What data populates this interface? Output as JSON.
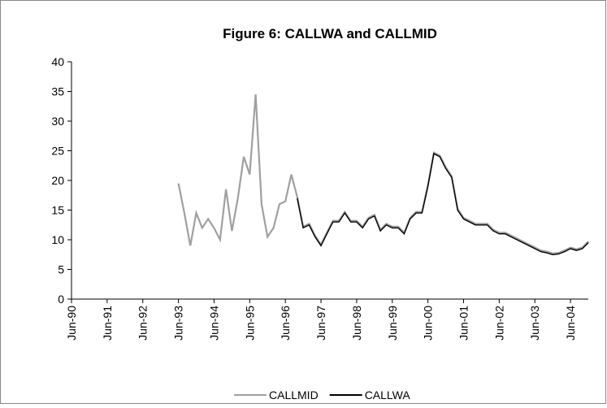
{
  "chart_data": {
    "type": "line",
    "title": "Figure 6: CALLWA and CALLMID",
    "categories": [
      "Jun-90",
      null,
      null,
      null,
      null,
      null,
      "Jun-91",
      null,
      null,
      null,
      null,
      null,
      "Jun-92",
      null,
      null,
      null,
      null,
      null,
      "Jun-93",
      null,
      null,
      null,
      null,
      null,
      "Jun-94",
      null,
      null,
      null,
      null,
      null,
      "Jun-95",
      null,
      null,
      null,
      null,
      null,
      "Jun-96",
      null,
      null,
      null,
      null,
      null,
      "Jun-97",
      null,
      null,
      null,
      null,
      null,
      "Jun-98",
      null,
      null,
      null,
      null,
      null,
      "Jun-99",
      null,
      null,
      null,
      null,
      null,
      "Jun-00",
      null,
      null,
      null,
      null,
      null,
      "Jun-01",
      null,
      null,
      null,
      null,
      null,
      "Jun-02",
      null,
      null,
      null,
      null,
      null,
      "Jun-03",
      null,
      null,
      null,
      null,
      null,
      "Jun-04",
      null,
      null,
      null
    ],
    "series": [
      {
        "name": "CALLMID",
        "color": "#a0a0a0",
        "values": [
          null,
          null,
          null,
          null,
          null,
          null,
          null,
          null,
          null,
          null,
          null,
          null,
          null,
          null,
          null,
          null,
          null,
          null,
          19.5,
          14.5,
          9,
          14.5,
          12,
          13.5,
          12,
          10,
          18.5,
          11.5,
          17,
          24,
          21,
          34.5,
          16,
          10.5,
          12,
          16,
          16.5,
          21,
          17.2,
          12.2,
          12.7,
          10.7,
          9.2,
          11.2,
          13.2,
          13.2,
          14.7,
          13.2,
          13.2,
          12.2,
          13.7,
          14.2,
          11.7,
          12.7,
          12.2,
          12.2,
          11.2,
          13.7,
          14.7,
          14.7,
          19.2,
          24.7,
          24.2,
          22.2,
          20.7,
          15.2,
          13.7,
          13.2,
          12.7,
          12.7,
          12.7,
          11.7,
          11.2,
          11.2,
          10.7,
          10.2,
          9.7,
          9.2,
          8.7,
          8.2,
          8,
          7.7,
          7.8,
          8.2,
          8.7,
          8.4,
          8.7,
          9.7
        ]
      },
      {
        "name": "CALLWA",
        "color": "#000000",
        "values": [
          null,
          null,
          null,
          null,
          null,
          null,
          null,
          null,
          null,
          null,
          null,
          null,
          null,
          null,
          null,
          null,
          null,
          null,
          null,
          null,
          null,
          null,
          null,
          null,
          null,
          null,
          null,
          null,
          null,
          null,
          null,
          null,
          null,
          null,
          null,
          null,
          null,
          null,
          17,
          12,
          12.5,
          10.5,
          9,
          11,
          13,
          13,
          14.5,
          13,
          13,
          12,
          13.5,
          14,
          11.5,
          12.5,
          12,
          12,
          11,
          13.5,
          14.5,
          14.5,
          19,
          24.5,
          24,
          22,
          20.5,
          15,
          13.5,
          13,
          12.5,
          12.5,
          12.5,
          11.5,
          11,
          11,
          10.5,
          10,
          9.5,
          9,
          8.5,
          8,
          7.8,
          7.5,
          7.6,
          8,
          8.5,
          8.2,
          8.5,
          9.5
        ]
      }
    ],
    "ylim": [
      0,
      40
    ],
    "yticks": [
      0,
      5,
      10,
      15,
      20,
      25,
      30,
      35,
      40
    ],
    "grid": false,
    "legend": "bottom"
  }
}
